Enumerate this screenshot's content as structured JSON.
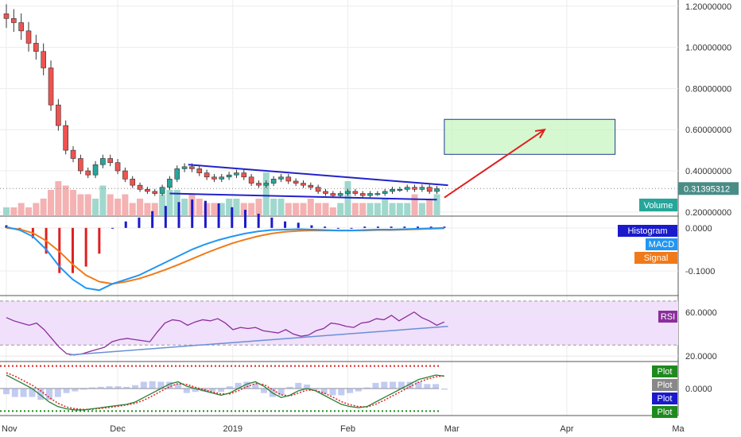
{
  "chart_data": {
    "type": "line",
    "title": "",
    "time_axis": {
      "labels": [
        "Nov",
        "Dec",
        "2019",
        "Feb",
        "Mar",
        "Apr",
        "Ma"
      ],
      "dates": [
        "2018-11-01",
        "2018-12-01",
        "2019-01-01",
        "2019-02-01",
        "2019-03-01",
        "2019-04-01",
        "2019-05-01"
      ],
      "range": [
        "2018-11-01",
        "2019-05-01"
      ]
    },
    "price_panel": {
      "ylim": [
        0.18,
        1.23
      ],
      "ticks": [
        0.2,
        0.4,
        0.6,
        0.8,
        1.0,
        1.2
      ],
      "tick_labels": [
        "0.20000000",
        "0.40000000",
        "0.60000000",
        "0.80000000",
        "1.00000000",
        "1.20000000"
      ],
      "last_price_label": "0.31395312",
      "last_price": 0.31395312,
      "candles": {
        "dates": [
          "2018-11-01",
          "2018-11-03",
          "2018-11-05",
          "2018-11-07",
          "2018-11-09",
          "2018-11-11",
          "2018-11-13",
          "2018-11-15",
          "2018-11-17",
          "2018-11-19",
          "2018-11-21",
          "2018-11-23",
          "2018-11-25",
          "2018-11-27",
          "2018-11-29",
          "2018-12-01",
          "2018-12-03",
          "2018-12-05",
          "2018-12-07",
          "2018-12-09",
          "2018-12-11",
          "2018-12-13",
          "2018-12-15",
          "2018-12-17",
          "2018-12-19",
          "2018-12-21",
          "2018-12-23",
          "2018-12-25",
          "2018-12-27",
          "2018-12-29",
          "2018-12-31",
          "2019-01-02",
          "2019-01-04",
          "2019-01-06",
          "2019-01-08",
          "2019-01-10",
          "2019-01-12",
          "2019-01-14",
          "2019-01-16",
          "2019-01-18",
          "2019-01-20",
          "2019-01-22",
          "2019-01-24",
          "2019-01-26",
          "2019-01-28",
          "2019-01-30",
          "2019-02-01",
          "2019-02-03",
          "2019-02-05",
          "2019-02-07",
          "2019-02-09",
          "2019-02-11",
          "2019-02-13",
          "2019-02-15",
          "2019-02-17",
          "2019-02-19",
          "2019-02-21",
          "2019-02-23",
          "2019-02-25"
        ],
        "close": [
          1.14,
          1.12,
          1.08,
          1.02,
          0.98,
          0.9,
          0.72,
          0.62,
          0.5,
          0.46,
          0.4,
          0.38,
          0.43,
          0.46,
          0.44,
          0.4,
          0.36,
          0.33,
          0.31,
          0.3,
          0.29,
          0.32,
          0.36,
          0.41,
          0.42,
          0.41,
          0.39,
          0.37,
          0.36,
          0.37,
          0.38,
          0.39,
          0.37,
          0.34,
          0.33,
          0.34,
          0.36,
          0.37,
          0.35,
          0.34,
          0.33,
          0.32,
          0.3,
          0.29,
          0.28,
          0.29,
          0.3,
          0.29,
          0.28,
          0.29,
          0.29,
          0.3,
          0.31,
          0.31,
          0.32,
          0.31,
          0.32,
          0.3,
          0.314
        ],
        "volume": [
          0.2,
          0.2,
          0.3,
          0.2,
          0.3,
          0.4,
          0.6,
          0.8,
          0.7,
          0.6,
          0.5,
          0.5,
          0.4,
          0.7,
          0.5,
          0.4,
          0.5,
          0.3,
          0.4,
          0.3,
          0.3,
          0.5,
          0.6,
          0.6,
          0.4,
          0.5,
          0.4,
          0.3,
          0.3,
          0.3,
          0.4,
          0.4,
          0.3,
          0.3,
          0.4,
          1.0,
          0.4,
          0.4,
          0.3,
          0.3,
          0.3,
          0.4,
          0.3,
          0.3,
          0.2,
          0.3,
          0.8,
          0.3,
          0.3,
          0.3,
          0.3,
          0.4,
          0.3,
          0.3,
          0.3,
          0.5,
          0.3,
          0.4,
          0.5
        ]
      },
      "volume_label": "Volume",
      "trendline_upper": {
        "from": [
          "2018-12-20",
          0.43
        ],
        "to": [
          "2019-02-28",
          0.33
        ]
      },
      "trendline_lower": {
        "from": [
          "2018-12-15",
          0.29
        ],
        "to": [
          "2019-02-25",
          0.26
        ]
      },
      "projection_arrow": {
        "from": [
          "2019-02-27",
          0.27
        ],
        "to": [
          "2019-03-26",
          0.6
        ]
      },
      "target_box": {
        "x": [
          "2019-02-27",
          "2019-04-14"
        ],
        "y": [
          0.48,
          0.65
        ]
      }
    },
    "macd_panel": {
      "ylim": [
        -0.15,
        0.02
      ],
      "ticks": [
        0.0,
        -0.1
      ],
      "tick_labels": [
        "0.0000",
        "-0.1000"
      ],
      "legend": [
        "Histogram",
        "MACD",
        "Signal"
      ],
      "macd": [
        0.002,
        -0.005,
        -0.02,
        -0.05,
        -0.09,
        -0.12,
        -0.14,
        -0.145,
        -0.13,
        -0.12,
        -0.11,
        -0.095,
        -0.08,
        -0.065,
        -0.05,
        -0.038,
        -0.028,
        -0.02,
        -0.013,
        -0.008,
        -0.005,
        -0.004,
        -0.003,
        -0.004,
        -0.005,
        -0.006,
        -0.006,
        -0.005,
        -0.004,
        -0.004,
        -0.003,
        -0.002,
        -0.001,
        0.0
      ],
      "signal": [
        0.0,
        -0.003,
        -0.012,
        -0.03,
        -0.055,
        -0.085,
        -0.11,
        -0.125,
        -0.13,
        -0.125,
        -0.118,
        -0.108,
        -0.097,
        -0.085,
        -0.072,
        -0.059,
        -0.047,
        -0.036,
        -0.027,
        -0.019,
        -0.013,
        -0.009,
        -0.007,
        -0.006,
        -0.006,
        -0.006,
        -0.006,
        -0.006,
        -0.005,
        -0.005,
        -0.004,
        -0.003,
        -0.002,
        -0.001
      ]
    },
    "rsi_panel": {
      "ylim": [
        15,
        75
      ],
      "ticks": [
        60,
        20
      ],
      "tick_labels": [
        "60.0000",
        "20.0000"
      ],
      "band": [
        30,
        70
      ],
      "legend": [
        "RSI"
      ],
      "rsi": [
        55,
        52,
        50,
        48,
        50,
        44,
        36,
        28,
        22,
        21,
        22,
        24,
        26,
        28,
        33,
        35,
        36,
        35,
        34,
        33,
        42,
        50,
        53,
        52,
        48,
        51,
        53,
        52,
        54,
        50,
        44,
        46,
        45,
        46,
        43,
        42,
        41,
        44,
        40,
        38,
        39,
        43,
        45,
        50,
        49,
        47,
        46,
        50,
        51,
        54,
        53,
        57,
        52,
        56,
        60,
        55,
        52,
        48,
        51
      ],
      "trendline": {
        "from": [
          "2018-11-18",
          21
        ],
        "to": [
          "2019-02-28",
          47
        ]
      }
    },
    "osc_panel": {
      "ticks": [
        0.0
      ],
      "tick_labels": [
        "0.0000"
      ],
      "legend": [
        "Plot",
        "Plot",
        "Plot",
        "Plot"
      ],
      "legend_colors": [
        "#1e8a1e",
        "#888888",
        "#1a1acc",
        "#1e8a1e"
      ],
      "fast": [
        0.6,
        0.4,
        0.2,
        0.0,
        -0.3,
        -0.6,
        -0.8,
        -0.9,
        -0.95,
        -0.95,
        -0.9,
        -0.85,
        -0.8,
        -0.75,
        -0.7,
        -0.6,
        -0.4,
        -0.2,
        0.0,
        0.2,
        0.3,
        0.1,
        0.0,
        -0.1,
        -0.2,
        -0.3,
        -0.2,
        0.0,
        0.2,
        0.3,
        0.1,
        -0.2,
        -0.4,
        -0.3,
        -0.1,
        0.0,
        -0.1,
        -0.3,
        -0.5,
        -0.7,
        -0.8,
        -0.85,
        -0.8,
        -0.6,
        -0.4,
        -0.2,
        0.0,
        0.2,
        0.4,
        0.5,
        0.6,
        0.55
      ],
      "slow": [
        0.7,
        0.55,
        0.35,
        0.15,
        -0.1,
        -0.4,
        -0.65,
        -0.82,
        -0.9,
        -0.93,
        -0.92,
        -0.88,
        -0.84,
        -0.79,
        -0.73,
        -0.66,
        -0.52,
        -0.33,
        -0.12,
        0.08,
        0.22,
        0.18,
        0.06,
        -0.05,
        -0.15,
        -0.24,
        -0.24,
        -0.1,
        0.08,
        0.22,
        0.18,
        -0.05,
        -0.28,
        -0.33,
        -0.2,
        -0.07,
        -0.08,
        -0.2,
        -0.38,
        -0.58,
        -0.72,
        -0.8,
        -0.82,
        -0.7,
        -0.52,
        -0.32,
        -0.12,
        0.08,
        0.28,
        0.42,
        0.52,
        0.57
      ]
    }
  }
}
